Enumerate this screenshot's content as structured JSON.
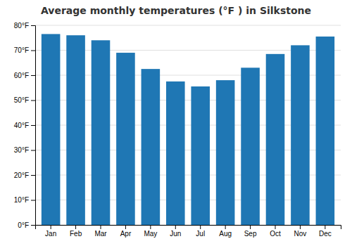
{
  "chart_data": {
    "type": "bar",
    "title": "Average monthly temperatures (°F ) in Silkstone",
    "categories": [
      "Jan",
      "Feb",
      "Mar",
      "Apr",
      "May",
      "Jun",
      "Jul",
      "Aug",
      "Sep",
      "Oct",
      "Nov",
      "Dec"
    ],
    "values": [
      76.5,
      76.0,
      74.0,
      69.0,
      62.5,
      57.5,
      55.5,
      58.0,
      63.0,
      68.5,
      72.0,
      75.5
    ],
    "ylim": [
      0,
      80
    ],
    "yticks": [
      {
        "value": 0,
        "label": "0°F"
      },
      {
        "value": 10,
        "label": "10°F"
      },
      {
        "value": 20,
        "label": "20°F"
      },
      {
        "value": 30,
        "label": "30°F"
      },
      {
        "value": 40,
        "label": "40°F"
      },
      {
        "value": 50,
        "label": "50°F"
      },
      {
        "value": 60,
        "label": "60°F"
      },
      {
        "value": 70,
        "label": "70°F"
      },
      {
        "value": 80,
        "label": "80°F"
      }
    ],
    "grid": true
  }
}
